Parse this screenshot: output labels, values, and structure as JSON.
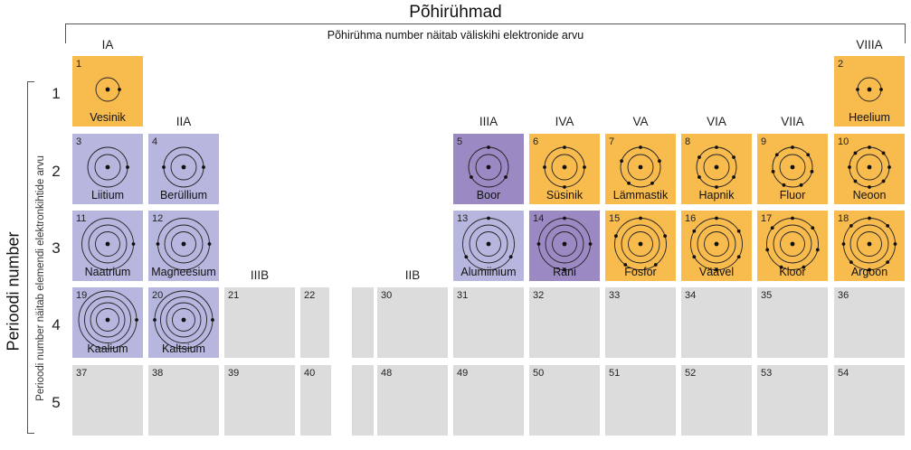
{
  "title": "Põhirühmad",
  "subtitle": "Põhirühma number näitab väliskihi elektronide arvu",
  "period_title": "Perioodi number",
  "period_subtitle": "Perioodi number näitab elemendi elektronkihtide arvu",
  "row_numbers": [
    "1",
    "2",
    "3",
    "4",
    "5"
  ],
  "groups": {
    "ia": "IA",
    "iia": "IIA",
    "iiib": "IIIB",
    "iib": "IIB",
    "iiia": "IIIA",
    "iva": "IVA",
    "va": "VA",
    "via": "VIA",
    "viia": "VIIA",
    "viiia": "VIIIA"
  },
  "colors": {
    "metal": "#b7b6de",
    "metalloid": "#9a89c2",
    "nonmetal": "#f8bb4e",
    "unshown": "#dcdcdc"
  },
  "elements": {
    "h": {
      "num": "1",
      "name": "Vesinik",
      "shells": [
        1
      ]
    },
    "he": {
      "num": "2",
      "name": "Heelium",
      "shells": [
        2
      ]
    },
    "li": {
      "num": "3",
      "name": "Liitium",
      "shells": [
        2,
        1
      ]
    },
    "be": {
      "num": "4",
      "name": "Berüllium",
      "shells": [
        2,
        2
      ]
    },
    "b": {
      "num": "5",
      "name": "Boor",
      "shells": [
        2,
        3
      ]
    },
    "c": {
      "num": "6",
      "name": "Süsinik",
      "shells": [
        2,
        4
      ]
    },
    "n": {
      "num": "7",
      "name": "Lämmastik",
      "shells": [
        2,
        5
      ]
    },
    "o": {
      "num": "8",
      "name": "Hapnik",
      "shells": [
        2,
        6
      ]
    },
    "f": {
      "num": "9",
      "name": "Fluor",
      "shells": [
        2,
        7
      ]
    },
    "ne": {
      "num": "10",
      "name": "Neoon",
      "shells": [
        2,
        8
      ]
    },
    "na": {
      "num": "11",
      "name": "Naatrium",
      "shells": [
        2,
        8,
        1
      ]
    },
    "mg": {
      "num": "12",
      "name": "Magneesium",
      "shells": [
        2,
        8,
        2
      ]
    },
    "al": {
      "num": "13",
      "name": "Alumiinium",
      "shells": [
        2,
        8,
        3
      ]
    },
    "si": {
      "num": "14",
      "name": "Räni",
      "shells": [
        2,
        8,
        4
      ]
    },
    "p": {
      "num": "15",
      "name": "Fosfor",
      "shells": [
        2,
        8,
        5
      ]
    },
    "s": {
      "num": "16",
      "name": "Väävel",
      "shells": [
        2,
        8,
        6
      ]
    },
    "cl": {
      "num": "17",
      "name": "Kloor",
      "shells": [
        2,
        8,
        7
      ]
    },
    "ar": {
      "num": "18",
      "name": "Argoon",
      "shells": [
        2,
        8,
        8
      ]
    },
    "k": {
      "num": "19",
      "name": "Kaalium",
      "shells": [
        2,
        8,
        8,
        1
      ]
    },
    "ca": {
      "num": "20",
      "name": "Kaltsium",
      "shells": [
        2,
        8,
        8,
        2
      ]
    }
  },
  "gray_cells": {
    "c21": "21",
    "c22": "22",
    "c30": "30",
    "c31": "31",
    "c32": "32",
    "c33": "33",
    "c34": "34",
    "c35": "35",
    "c36": "36",
    "c37": "37",
    "c38": "38",
    "c39": "39",
    "c40": "40",
    "c48": "48",
    "c49": "49",
    "c50": "50",
    "c51": "51",
    "c52": "52",
    "c53": "53",
    "c54": "54"
  }
}
